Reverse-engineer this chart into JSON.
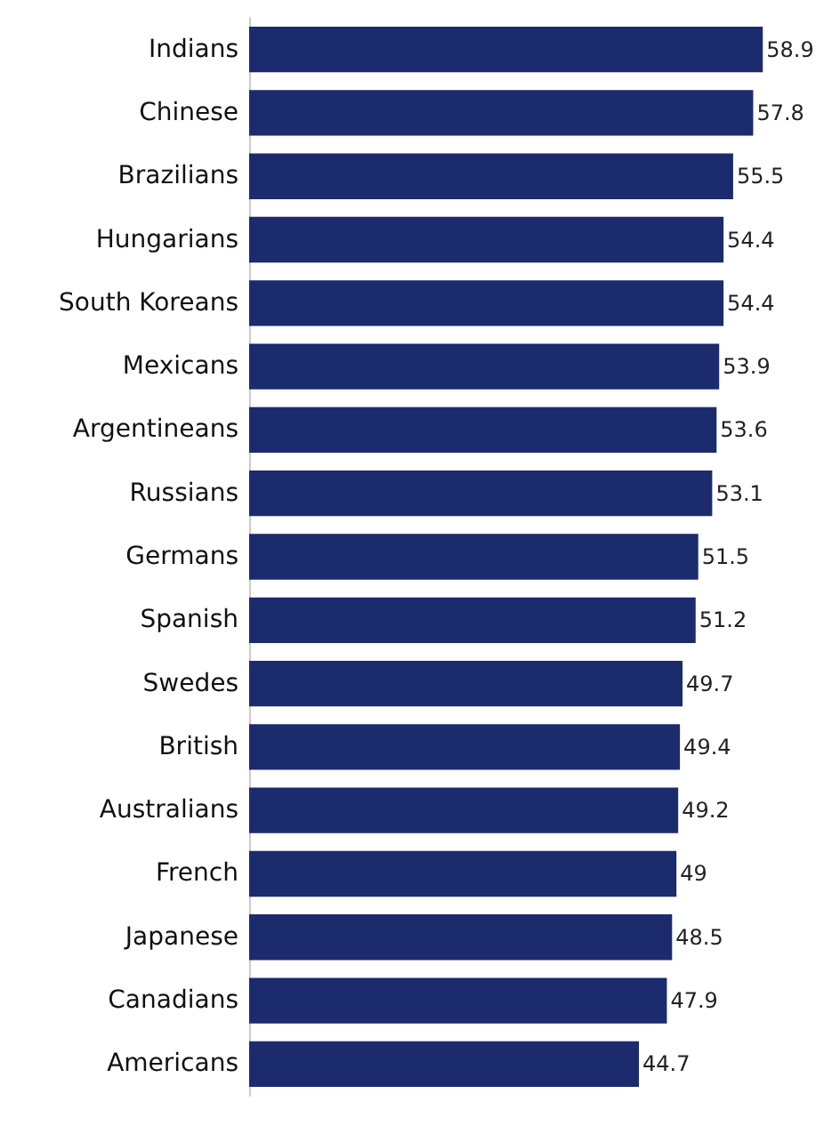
{
  "chart_data": {
    "type": "bar",
    "orientation": "horizontal",
    "categories": [
      "Indians",
      "Chinese",
      "Brazilians",
      "Hungarians",
      "South Koreans",
      "Mexicans",
      "Argentineans",
      "Russians",
      "Germans",
      "Spanish",
      "Swedes",
      "British",
      "Australians",
      "French",
      "Japanese",
      "Canadians",
      "Americans"
    ],
    "values": [
      58.9,
      57.8,
      55.5,
      54.4,
      54.4,
      53.9,
      53.6,
      53.1,
      51.5,
      51.2,
      49.7,
      49.4,
      49.2,
      49,
      48.5,
      47.9,
      44.7
    ],
    "color": "#1c2a6e",
    "data_labels": true
  }
}
